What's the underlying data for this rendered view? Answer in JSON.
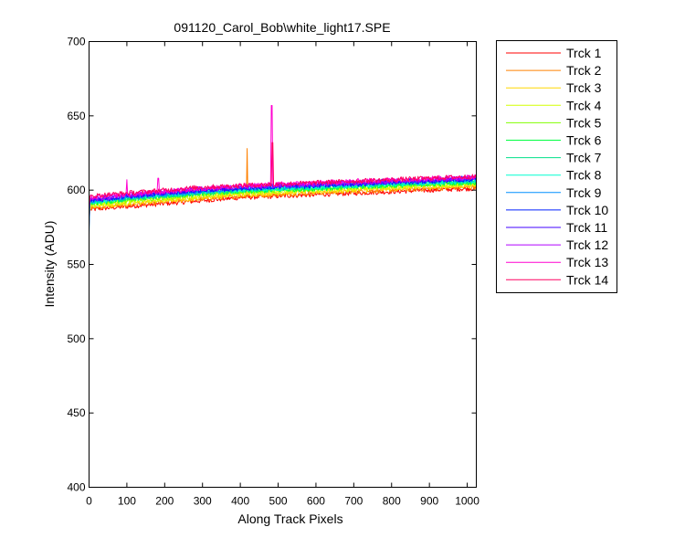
{
  "chart_data": {
    "type": "line",
    "title": "091120_Carol_Bob\\white_light17.SPE",
    "xlabel": "Along Track Pixels",
    "ylabel": "Intensity (ADU)",
    "xlim": [
      0,
      1024
    ],
    "ylim": [
      400,
      700
    ],
    "xticks": [
      0,
      100,
      200,
      300,
      400,
      500,
      600,
      700,
      800,
      900,
      1000
    ],
    "yticks": [
      400,
      450,
      500,
      550,
      600,
      650,
      700
    ],
    "grid": false,
    "legend_position": "outside-right",
    "x_samples": [
      0,
      2,
      4,
      50,
      100,
      200,
      300,
      400,
      500,
      600,
      700,
      800,
      900,
      1000,
      1024
    ],
    "series": [
      {
        "name": "Trck 1",
        "color": "#ff0000",
        "values": [
          575,
          586,
          587,
          588,
          589,
          591,
          593,
          595,
          596,
          597,
          598,
          599,
          600,
          601,
          601
        ],
        "spikes": []
      },
      {
        "name": "Trck 2",
        "color": "#ff8000",
        "values": [
          578,
          587,
          588,
          589,
          590,
          592,
          594,
          596,
          597,
          598,
          599,
          600,
          601,
          602,
          602
        ],
        "spikes": [
          {
            "x": 418,
            "y": 628
          }
        ]
      },
      {
        "name": "Trck 3",
        "color": "#ffd700",
        "values": [
          580,
          588,
          589,
          590,
          591,
          593,
          595,
          597,
          598,
          599,
          600,
          601,
          602,
          603,
          603
        ],
        "spikes": []
      },
      {
        "name": "Trck 4",
        "color": "#d4ff00",
        "values": [
          582,
          589,
          590,
          591,
          592,
          594,
          596,
          598,
          599,
          600,
          601,
          602,
          603,
          604,
          604
        ],
        "spikes": []
      },
      {
        "name": "Trck 5",
        "color": "#80ff00",
        "values": [
          583,
          590,
          591,
          592,
          593,
          595,
          597,
          599,
          600,
          601,
          602,
          603,
          604,
          605,
          605
        ],
        "spikes": []
      },
      {
        "name": "Trck 6",
        "color": "#00ff40",
        "values": [
          584,
          590,
          591,
          592,
          594,
          596,
          598,
          599,
          600,
          601,
          602,
          603,
          604,
          605,
          605
        ],
        "spikes": []
      },
      {
        "name": "Trck 7",
        "color": "#00e08a",
        "values": [
          585,
          591,
          592,
          593,
          594,
          596,
          598,
          600,
          601,
          602,
          603,
          604,
          605,
          606,
          606
        ],
        "spikes": []
      },
      {
        "name": "Trck 8",
        "color": "#00ffd0",
        "values": [
          585,
          591,
          592,
          593,
          595,
          597,
          599,
          600,
          601,
          602,
          603,
          604,
          605,
          606,
          606
        ],
        "spikes": []
      },
      {
        "name": "Trck 9",
        "color": "#0090ff",
        "values": [
          570,
          592,
          593,
          594,
          595,
          597,
          599,
          601,
          602,
          603,
          604,
          605,
          606,
          607,
          607
        ],
        "spikes": []
      },
      {
        "name": "Trck 10",
        "color": "#0020ff",
        "values": [
          586,
          592,
          593,
          594,
          596,
          598,
          600,
          601,
          602,
          603,
          604,
          605,
          606,
          607,
          607
        ],
        "spikes": []
      },
      {
        "name": "Trck 11",
        "color": "#4000ff",
        "values": [
          587,
          593,
          594,
          595,
          596,
          598,
          600,
          602,
          603,
          604,
          605,
          606,
          607,
          608,
          608
        ],
        "spikes": []
      },
      {
        "name": "Trck 12",
        "color": "#b000ff",
        "values": [
          588,
          593,
          594,
          595,
          597,
          599,
          601,
          602,
          603,
          604,
          605,
          606,
          607,
          608,
          608
        ],
        "spikes": []
      },
      {
        "name": "Trck 13",
        "color": "#ff00d0",
        "values": [
          588,
          594,
          595,
          596,
          597,
          599,
          601,
          603,
          604,
          605,
          606,
          607,
          608,
          609,
          609
        ],
        "spikes": [
          {
            "x": 483,
            "y": 657
          },
          {
            "x": 100,
            "y": 607
          },
          {
            "x": 183,
            "y": 608
          }
        ]
      },
      {
        "name": "Trck 14",
        "color": "#ff0060",
        "values": [
          589,
          595,
          596,
          597,
          598,
          600,
          602,
          603,
          604,
          605,
          606,
          607,
          608,
          609,
          609
        ],
        "spikes": [
          {
            "x": 485,
            "y": 632
          }
        ]
      }
    ]
  }
}
